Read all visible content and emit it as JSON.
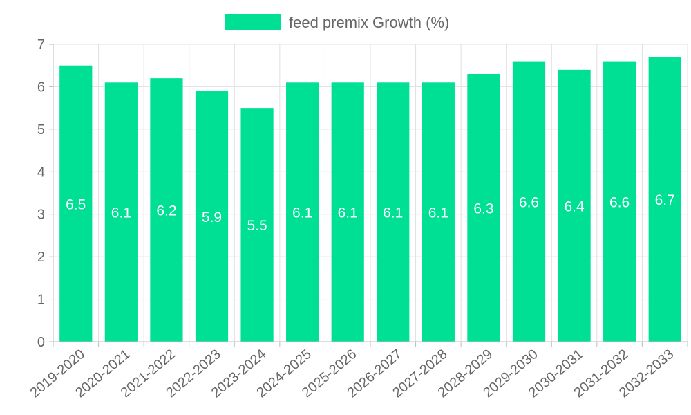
{
  "chart_data": {
    "type": "bar",
    "title": "",
    "xlabel": "",
    "ylabel": "",
    "ylim": [
      0,
      7
    ],
    "y_ticks": [
      0,
      1,
      2,
      3,
      4,
      5,
      6,
      7
    ],
    "grid": true,
    "legend_position": "top-center",
    "categories": [
      "2019-2020",
      "2020-2021",
      "2021-2022",
      "2022-2023",
      "2023-2024",
      "2024-2025",
      "2025-2026",
      "2026-2027",
      "2027-2028",
      "2028-2029",
      "2029-2030",
      "2030-2031",
      "2031-2032",
      "2032-2033"
    ],
    "series": [
      {
        "name": "feed premix Growth (%)",
        "color": "#00e095",
        "values": [
          6.5,
          6.1,
          6.2,
          5.9,
          5.5,
          6.1,
          6.1,
          6.1,
          6.1,
          6.3,
          6.6,
          6.4,
          6.6,
          6.7
        ]
      }
    ]
  }
}
